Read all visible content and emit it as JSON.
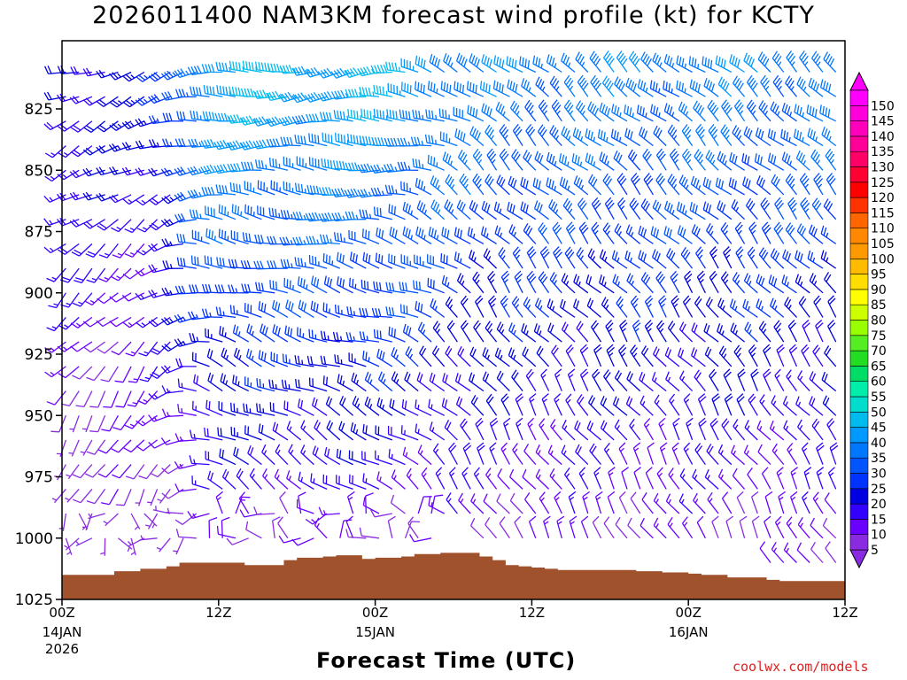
{
  "page": {
    "title": "2026011400 NAM3KM forecast wind profile (kt) for KCTY",
    "credit": "coolwx.com/models"
  },
  "chart_data": {
    "type": "wind_barb_time_height",
    "title": "2026011400 NAM3KM forecast wind profile (kt) for KCTY",
    "xlabel": "Forecast Time (UTC)",
    "ylabel": "",
    "y_ticks": [
      825,
      850,
      875,
      900,
      925,
      950,
      975,
      1000,
      1025
    ],
    "ylim": [
      805,
      1025
    ],
    "y_units": "hPa",
    "x_ticks": [
      {
        "hour": 0,
        "label": "00Z",
        "sub1": "14JAN",
        "sub2": "2026"
      },
      {
        "hour": 12,
        "label": "12Z",
        "sub1": "",
        "sub2": ""
      },
      {
        "hour": 24,
        "label": "00Z",
        "sub1": "15JAN",
        "sub2": ""
      },
      {
        "hour": 36,
        "label": "12Z",
        "sub1": "",
        "sub2": ""
      },
      {
        "hour": 48,
        "label": "00Z",
        "sub1": "16JAN",
        "sub2": ""
      },
      {
        "hour": 60,
        "label": "12Z",
        "sub1": "",
        "sub2": ""
      }
    ],
    "xlim": [
      0,
      60
    ],
    "colorbar": {
      "levels": [
        5,
        10,
        15,
        20,
        25,
        30,
        35,
        40,
        45,
        50,
        55,
        60,
        65,
        70,
        75,
        80,
        85,
        90,
        95,
        100,
        105,
        110,
        115,
        120,
        125,
        130,
        135,
        140,
        145,
        150
      ],
      "colors": [
        "#8a2be2",
        "#6a00ff",
        "#3300ff",
        "#0000e0",
        "#0033ff",
        "#0055ff",
        "#0077ff",
        "#0099ff",
        "#00bbee",
        "#00ddcc",
        "#00eeaa",
        "#00dd66",
        "#22dd22",
        "#55ee22",
        "#99ff00",
        "#ccff00",
        "#ffff00",
        "#ffdd00",
        "#ffbb00",
        "#ff9900",
        "#ff8800",
        "#ff6600",
        "#ff3300",
        "#ff0000",
        "#ff0033",
        "#ff0066",
        "#ff0099",
        "#ff00bb",
        "#ff00dd",
        "#ff00ff"
      ]
    },
    "terrain": {
      "color": "#a0522d",
      "hours": [
        0,
        3,
        4,
        6,
        8,
        9,
        12,
        14,
        15,
        17,
        18,
        20,
        21,
        23,
        24,
        26,
        27,
        29,
        30,
        32,
        33,
        34,
        35,
        36,
        37,
        38,
        39,
        41,
        44,
        46,
        47,
        48,
        49,
        50,
        51,
        52,
        53,
        54,
        55,
        56,
        60
      ],
      "pressure_hpa": [
        1015,
        1015,
        1013.5,
        1012.5,
        1011.5,
        1010,
        1010,
        1011,
        1011,
        1009,
        1008,
        1007.5,
        1007,
        1008.5,
        1008,
        1007.5,
        1006.5,
        1006,
        1006,
        1007.5,
        1009,
        1011,
        1011.5,
        1012,
        1012.5,
        1013,
        1013,
        1013,
        1013.5,
        1014,
        1014,
        1014.5,
        1015,
        1015,
        1016,
        1016,
        1016,
        1017,
        1017.5,
        1017.5,
        1017.5
      ]
    },
    "wind_field": {
      "time_step_hours": 1,
      "pressure_levels_hpa": [
        810,
        820,
        830,
        840,
        850,
        860,
        870,
        880,
        890,
        900,
        910,
        920,
        930,
        940,
        950,
        960,
        970,
        980,
        990,
        1000,
        1010
      ],
      "regimes": [
        {
          "period": "00Z-10Z 14JAN",
          "upper": "WSW 15-25 kt",
          "lower": "light and variable 5-10 kt"
        },
        {
          "period": "10Z 14JAN-06Z 15JAN",
          "upper": "W 30-45 kt",
          "lower": "W to NW 10-20 kt"
        },
        {
          "period": "06Z 15JAN-12Z 16JAN",
          "upper": "NW 25-40 kt",
          "lower": "NNW 10-20 kt"
        }
      ],
      "max_kt": 45
    }
  }
}
